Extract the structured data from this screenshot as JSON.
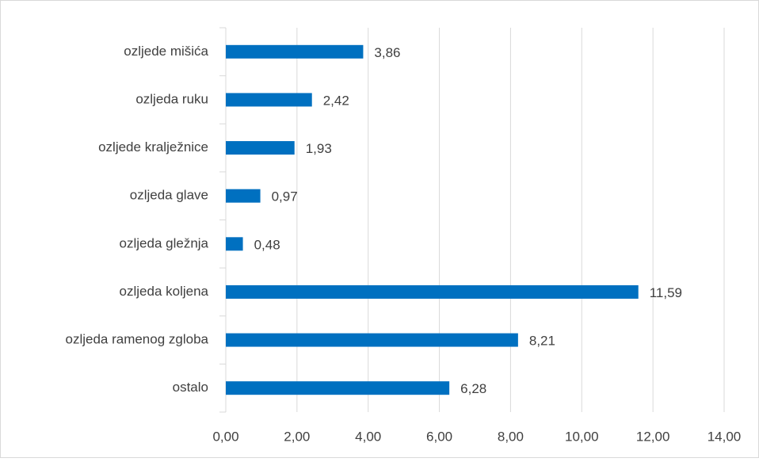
{
  "chart_data": {
    "type": "bar",
    "orientation": "horizontal",
    "categories": [
      "ozljede mišića",
      "ozljeda ruku",
      "ozljede kralježnice",
      "ozljeda glave",
      "ozljeda gležnja",
      "ozljeda koljena",
      "ozljeda ramenog zgloba",
      "ostalo"
    ],
    "values": [
      3.86,
      2.42,
      1.93,
      0.97,
      0.48,
      11.59,
      8.21,
      6.28
    ],
    "value_labels": [
      "3,86",
      "2,42",
      "1,93",
      "0,97",
      "0,48",
      "11,59",
      "8,21",
      "6,28"
    ],
    "color": "#0070c0",
    "xlim": [
      0,
      14
    ],
    "xticks": [
      {
        "value": 0,
        "label": "0,00"
      },
      {
        "value": 2,
        "label": "2,00"
      },
      {
        "value": 4,
        "label": "4,00"
      },
      {
        "value": 6,
        "label": "6,00"
      },
      {
        "value": 8,
        "label": "8,00"
      },
      {
        "value": 10,
        "label": "10,00"
      },
      {
        "value": 12,
        "label": "12,00"
      },
      {
        "value": 14,
        "label": "14,00"
      }
    ],
    "grid": true
  }
}
